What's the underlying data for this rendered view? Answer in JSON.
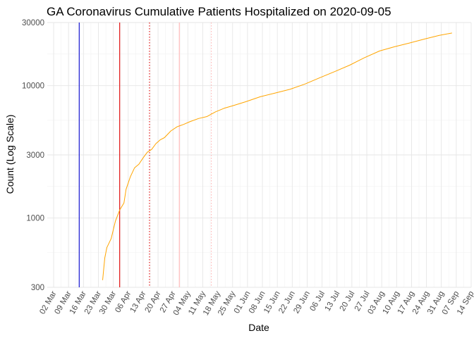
{
  "chart_data": {
    "type": "line",
    "title": "GA Coronavirus Cumulative Patients Hospitalized on 2020-09-05",
    "xlabel": "Date",
    "ylabel": "Count (Log Scale)",
    "y_scale": "log",
    "ylim": [
      300,
      30000
    ],
    "xlim": [
      "2020-02-28",
      "2020-09-14"
    ],
    "y_ticks": [
      300,
      1000,
      3000,
      10000,
      30000
    ],
    "y_tick_labels": [
      "300",
      "1000",
      "3000",
      "10000",
      "30000"
    ],
    "x_ticks": [
      "2020-03-02",
      "2020-03-09",
      "2020-03-16",
      "2020-03-23",
      "2020-03-30",
      "2020-04-06",
      "2020-04-13",
      "2020-04-20",
      "2020-04-27",
      "2020-05-04",
      "2020-05-11",
      "2020-05-18",
      "2020-05-25",
      "2020-06-01",
      "2020-06-08",
      "2020-06-15",
      "2020-06-22",
      "2020-06-29",
      "2020-07-06",
      "2020-07-13",
      "2020-07-20",
      "2020-07-27",
      "2020-08-03",
      "2020-08-10",
      "2020-08-17",
      "2020-08-24",
      "2020-08-31",
      "2020-09-07",
      "2020-09-14"
    ],
    "x_tick_labels": [
      "02 Mar",
      "09 Mar",
      "16 Mar",
      "23 Mar",
      "30 Mar",
      "06 Apr",
      "13 Apr",
      "20 Apr",
      "27 Apr",
      "04 May",
      "11 May",
      "18 May",
      "25 May",
      "01 Jun",
      "08 Jun",
      "15 Jun",
      "22 Jun",
      "29 Jun",
      "06 Jul",
      "13 Jul",
      "20 Jul",
      "27 Jul",
      "03 Aug",
      "10 Aug",
      "17 Aug",
      "24 Aug",
      "31 Aug",
      "07 Sep",
      "14 Sep"
    ],
    "grid": true,
    "vlines": [
      {
        "x": "2020-03-14",
        "color": "#0000cc",
        "style": "solid"
      },
      {
        "x": "2020-04-02",
        "color": "#dd0000",
        "style": "solid"
      },
      {
        "x": "2020-04-16",
        "color": "#dd0000",
        "style": "dotted"
      },
      {
        "x": "2020-04-30",
        "color": "#ffb6b6",
        "style": "solid"
      },
      {
        "x": "2020-05-15",
        "color": "#ffb6b6",
        "style": "dotted"
      }
    ],
    "series": [
      {
        "color": "#ffa500",
        "x": [
          "2020-03-25",
          "2020-03-26",
          "2020-03-27",
          "2020-03-29",
          "2020-03-31",
          "2020-04-02",
          "2020-04-04",
          "2020-04-05",
          "2020-04-07",
          "2020-04-09",
          "2020-04-11",
          "2020-04-13",
          "2020-04-15",
          "2020-04-17",
          "2020-04-19",
          "2020-04-21",
          "2020-04-23",
          "2020-04-26",
          "2020-04-29",
          "2020-05-02",
          "2020-05-05",
          "2020-05-09",
          "2020-05-13",
          "2020-05-17",
          "2020-05-21",
          "2020-05-25",
          "2020-05-31",
          "2020-06-07",
          "2020-06-14",
          "2020-06-21",
          "2020-06-28",
          "2020-07-05",
          "2020-07-12",
          "2020-07-19",
          "2020-07-26",
          "2020-08-02",
          "2020-08-09",
          "2020-08-16",
          "2020-08-23",
          "2020-08-30",
          "2020-09-05"
        ],
        "values": [
          340,
          500,
          600,
          700,
          950,
          1150,
          1300,
          1650,
          2050,
          2400,
          2550,
          2850,
          3150,
          3300,
          3650,
          3900,
          4050,
          4550,
          4900,
          5100,
          5350,
          5650,
          5850,
          6350,
          6750,
          7050,
          7550,
          8250,
          8800,
          9400,
          10300,
          11500,
          12800,
          14300,
          16300,
          18300,
          19700,
          21000,
          22500,
          24000,
          25000
        ]
      }
    ]
  }
}
